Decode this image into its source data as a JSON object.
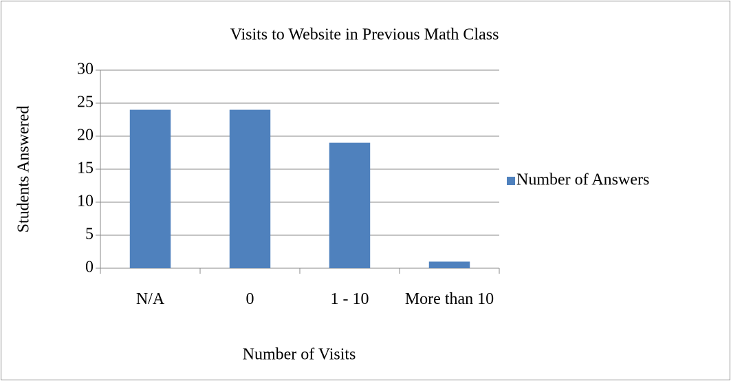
{
  "chart_data": {
    "type": "bar",
    "title": "Visits to Website in Previous Math Class",
    "x_label": "Number of Visits",
    "y_label": "Students Answered",
    "categories": [
      "N/A",
      "0",
      "1 - 10",
      "More than 10"
    ],
    "series": [
      {
        "name": "Number of Answers",
        "color": "#4f81bd",
        "values": [
          24,
          24,
          19,
          1
        ]
      }
    ],
    "ylim": [
      0,
      30
    ],
    "yticks": [
      0,
      5,
      10,
      15,
      20,
      25,
      30
    ],
    "grid": true,
    "legend": "right"
  }
}
